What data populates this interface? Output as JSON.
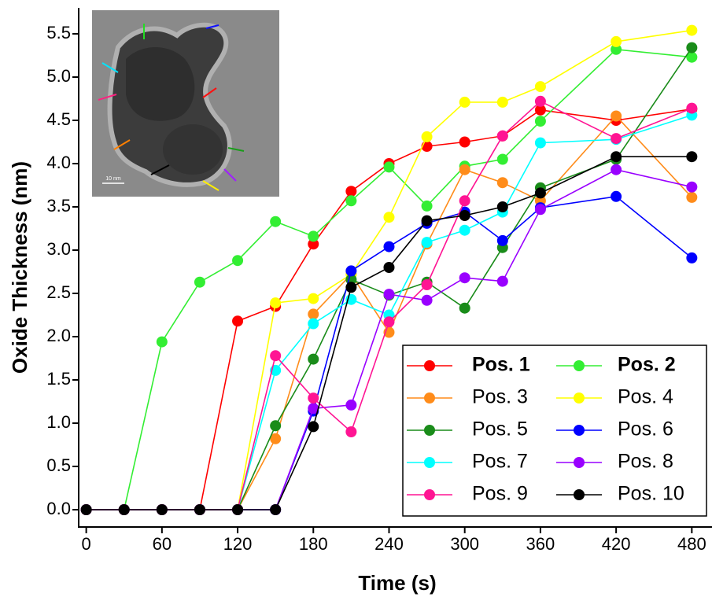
{
  "chart_data": {
    "type": "line",
    "xlabel": "Time (s)",
    "ylabel": "Oxide Thickness (nm)",
    "inset_scale_label": "10 nm",
    "x": [
      0,
      30,
      60,
      90,
      120,
      150,
      180,
      210,
      240,
      270,
      300,
      330,
      360,
      420,
      480
    ],
    "xlim": [
      -6,
      496
    ],
    "xticks": [
      0,
      60,
      120,
      180,
      240,
      300,
      360,
      420,
      480
    ],
    "ylim": [
      -0.2,
      5.8
    ],
    "yticks": [
      {
        "value": 0,
        "label": "0.0"
      },
      0.5,
      {
        "value": 1,
        "label": "1.0"
      },
      1.5,
      {
        "value": 2,
        "label": "2.0"
      },
      2.5,
      {
        "value": 3,
        "label": "3.0"
      },
      3.5,
      {
        "value": 4,
        "label": "4.0"
      },
      4.5,
      {
        "value": 5,
        "label": "5.0"
      },
      5.5
    ],
    "legend": "lower right",
    "series": [
      {
        "name": "Pos. 1",
        "bold": true,
        "color": "#ff0000",
        "values": [
          0,
          0,
          0,
          0,
          2.18,
          2.35,
          3.07,
          3.68,
          4.0,
          4.2,
          4.25,
          4.32,
          4.62,
          4.5,
          4.63
        ]
      },
      {
        "name": "Pos. 2",
        "bold": true,
        "color": "#33ee33",
        "values": [
          0,
          0,
          1.94,
          2.63,
          2.88,
          3.33,
          3.16,
          3.57,
          3.96,
          3.51,
          3.97,
          4.05,
          4.49,
          5.32,
          5.23
        ]
      },
      {
        "name": "Pos. 3",
        "color": "#ff8c1a",
        "values": [
          0,
          0,
          0,
          0,
          0,
          0.82,
          2.26,
          2.72,
          2.05,
          3.07,
          3.93,
          3.78,
          3.57,
          4.55,
          3.61
        ]
      },
      {
        "name": "Pos. 4",
        "color": "#ffff00",
        "values": [
          0,
          0,
          0,
          0,
          0,
          2.39,
          2.44,
          2.72,
          3.38,
          4.31,
          4.71,
          4.71,
          4.89,
          5.41,
          5.54
        ]
      },
      {
        "name": "Pos. 5",
        "color": "#1a8c1a",
        "values": [
          0,
          0,
          0,
          0,
          0,
          0.97,
          1.74,
          2.66,
          2.48,
          2.63,
          2.33,
          3.03,
          3.72,
          4.05,
          5.34
        ]
      },
      {
        "name": "Pos. 6",
        "color": "#0000ff",
        "values": [
          0,
          0,
          0,
          0,
          0,
          0,
          1.14,
          2.76,
          3.04,
          3.31,
          3.44,
          3.11,
          3.49,
          3.62,
          2.91
        ]
      },
      {
        "name": "Pos. 7",
        "color": "#00ffff",
        "values": [
          0,
          0,
          0,
          0,
          0,
          1.61,
          2.15,
          2.43,
          2.25,
          3.09,
          3.23,
          3.44,
          4.24,
          4.28,
          4.56
        ]
      },
      {
        "name": "Pos. 8",
        "color": "#9900ff",
        "values": [
          0,
          0,
          0,
          0,
          0,
          0,
          1.17,
          1.21,
          2.49,
          2.42,
          2.68,
          2.64,
          3.47,
          3.93,
          3.73
        ]
      },
      {
        "name": "Pos. 9",
        "color": "#ff1493",
        "values": [
          0,
          0,
          0,
          0,
          0,
          1.78,
          1.29,
          0.9,
          2.17,
          2.6,
          3.57,
          4.32,
          4.72,
          4.29,
          4.64
        ]
      },
      {
        "name": "Pos. 10",
        "color": "#000000",
        "values": [
          0,
          0,
          0,
          0,
          0,
          0,
          0.96,
          2.57,
          2.8,
          3.34,
          3.4,
          3.5,
          3.66,
          4.08,
          4.08
        ]
      }
    ]
  }
}
